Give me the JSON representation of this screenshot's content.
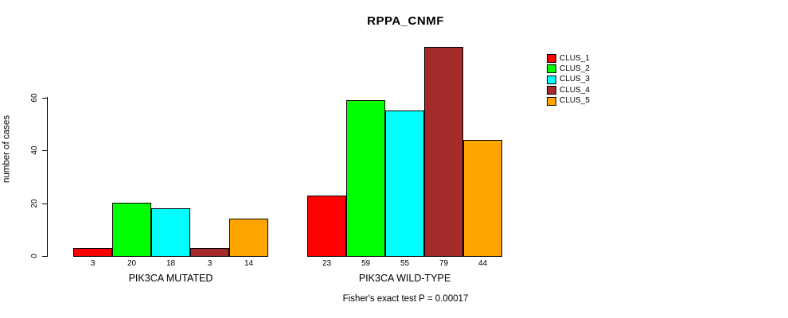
{
  "chart_data": {
    "type": "bar",
    "title": "RPPA_CNMF",
    "ylabel": "number of cases",
    "xlabel": "",
    "categories": [
      "PIK3CA MUTATED",
      "PIK3CA WILD-TYPE"
    ],
    "series": [
      {
        "name": "CLUS_1",
        "color": "#FF0000",
        "values": [
          3,
          23
        ]
      },
      {
        "name": "CLUS_2",
        "color": "#00FF00",
        "values": [
          20,
          59
        ]
      },
      {
        "name": "CLUS_3",
        "color": "#00FFFF",
        "values": [
          18,
          55
        ]
      },
      {
        "name": "CLUS_4",
        "color": "#A52A2A",
        "values": [
          3,
          79
        ]
      },
      {
        "name": "CLUS_5",
        "color": "#FFA500",
        "values": [
          14,
          44
        ]
      }
    ],
    "yticks": [
      0,
      20,
      40,
      60
    ],
    "ylim": [
      0,
      79
    ],
    "bar_value_labels": [
      [
        "3",
        "20",
        "18",
        "3",
        "14"
      ],
      [
        "23",
        "59",
        "55",
        "79",
        "44"
      ]
    ],
    "legend_position": "right",
    "grid": false,
    "annotation": "Fisher's exact test P = 0.00017"
  }
}
